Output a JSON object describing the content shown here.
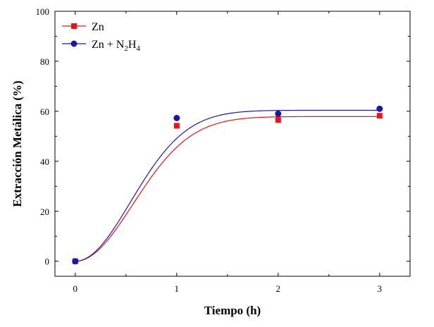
{
  "chart_data": {
    "type": "scatter",
    "xlabel": "Tiempo (h)",
    "ylabel": "Extracción Metálica (%)",
    "xlim": [
      -0.2,
      3.3
    ],
    "ylim": [
      -6,
      100
    ],
    "x_ticks": [
      0,
      1,
      2,
      3
    ],
    "y_ticks": [
      0,
      20,
      40,
      60,
      80,
      100
    ],
    "grid": false,
    "legend_position": "top-left",
    "series": [
      {
        "name": "Zn",
        "marker": "square",
        "color": "#e8141b",
        "x": [
          0,
          1,
          2,
          3
        ],
        "y": [
          0,
          54.2,
          56.5,
          58.2
        ],
        "fit": {
          "a": 57.9,
          "k": 1.55
        }
      },
      {
        "name_parts": [
          "Zn + N",
          "2",
          "H",
          "4"
        ],
        "marker": "circle",
        "color": "#1a1a9e",
        "x": [
          0,
          1,
          2,
          3
        ],
        "y": [
          0,
          57.3,
          59.0,
          61.0
        ],
        "fit": {
          "a": 60.4,
          "k": 1.68
        }
      }
    ]
  }
}
